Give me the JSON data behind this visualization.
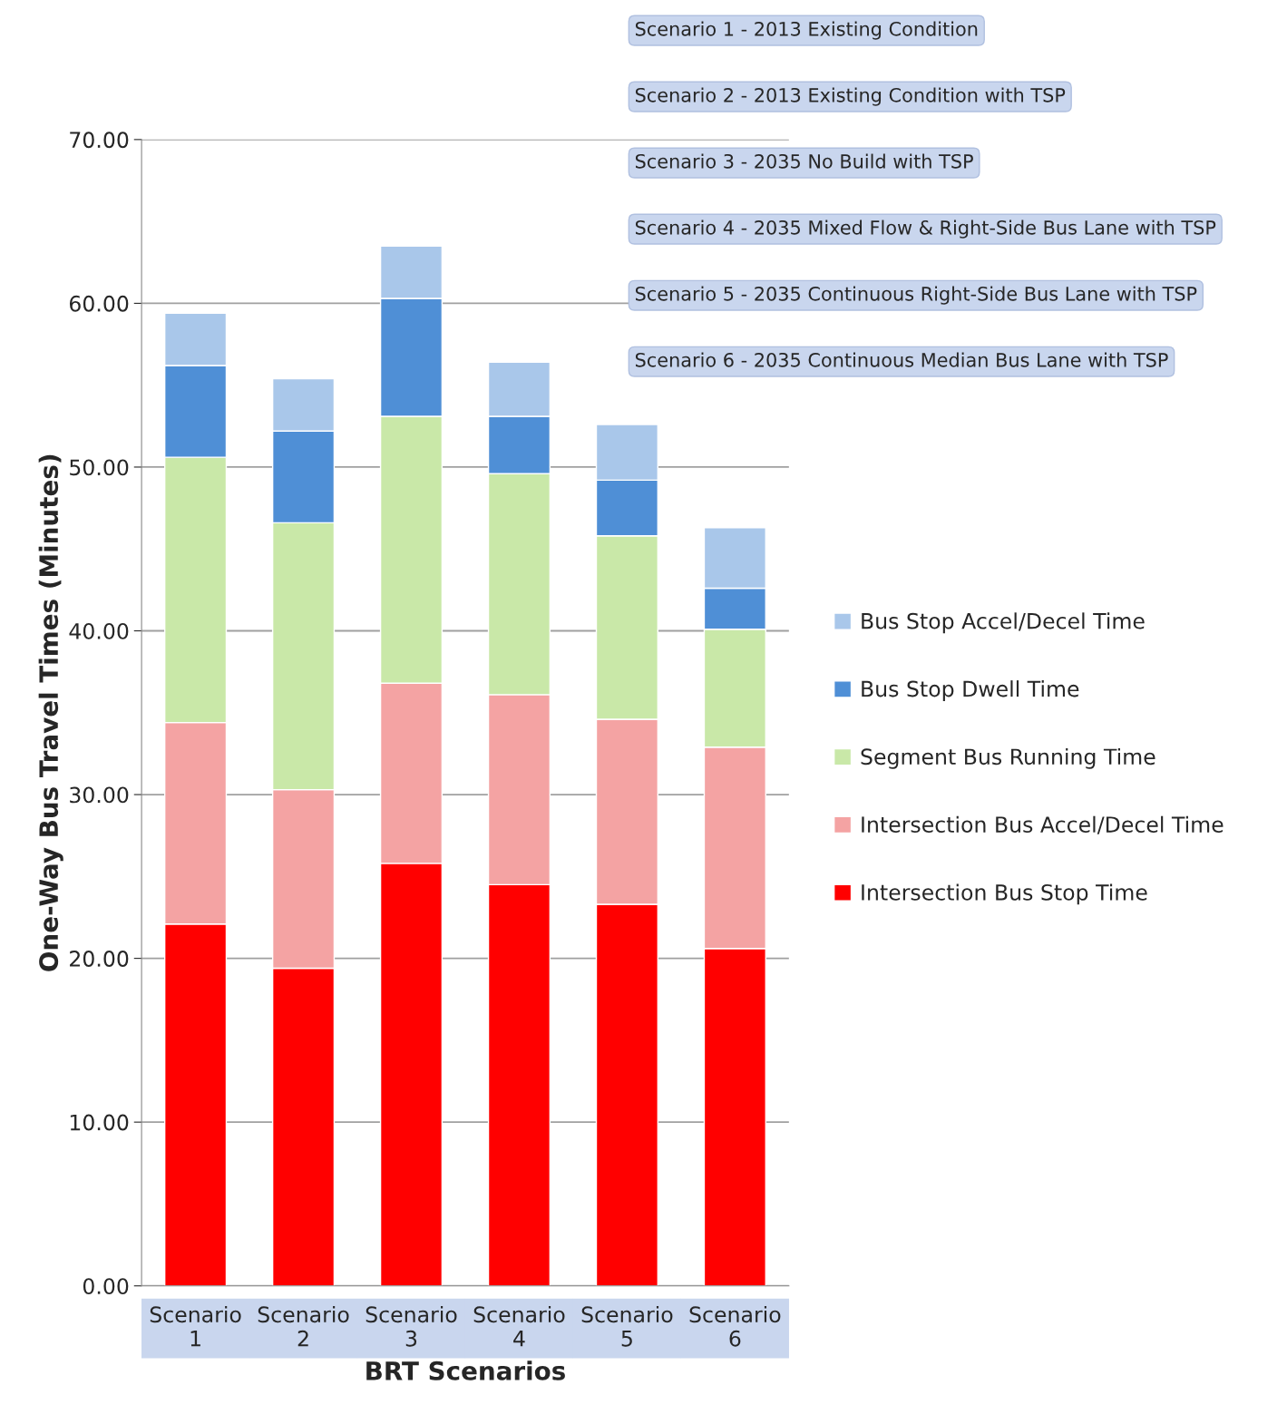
{
  "chart_data": {
    "type": "bar",
    "stacked": true,
    "xlabel": "BRT Scenarios",
    "ylabel": "One-Way Bus Travel Times (Minutes)",
    "categories": [
      "Scenario 1",
      "Scenario 2",
      "Scenario 3",
      "Scenario 4",
      "Scenario 5",
      "Scenario 6"
    ],
    "series": [
      {
        "name": "Intersection Bus Stop Time",
        "color": "#ff0000",
        "values": [
          22.1,
          19.4,
          25.8,
          24.5,
          23.3,
          20.6
        ]
      },
      {
        "name": "Intersection Bus Accel/Decel Time",
        "color": "#f4a3a3",
        "values": [
          12.3,
          10.9,
          11.0,
          11.6,
          11.3,
          12.3
        ]
      },
      {
        "name": "Segment Bus Running Time",
        "color": "#c9e8a8",
        "values": [
          16.2,
          16.3,
          16.3,
          13.5,
          11.2,
          7.2
        ]
      },
      {
        "name": "Bus Stop Dwell Time",
        "color": "#4f8fd6",
        "values": [
          5.6,
          5.6,
          7.2,
          3.5,
          3.4,
          2.5
        ]
      },
      {
        "name": "Bus Stop Accel/Decel Time",
        "color": "#a9c7ea",
        "values": [
          3.2,
          3.2,
          3.2,
          3.3,
          3.4,
          3.7
        ]
      }
    ],
    "ylim": [
      0,
      70
    ],
    "yticks": [
      {
        "value": 0,
        "label": "0.00"
      },
      {
        "value": 10,
        "label": "10.00"
      },
      {
        "value": 20,
        "label": "20.00"
      },
      {
        "value": 30,
        "label": "30.00"
      },
      {
        "value": 40,
        "label": "40.00"
      },
      {
        "value": 50,
        "label": "50.00"
      },
      {
        "value": 60,
        "label": "60.00"
      },
      {
        "value": 70,
        "label": "70.00"
      }
    ],
    "grid": "y",
    "legend": "right",
    "annotations": [
      "Scenario 1 - 2013 Existing Condition",
      "Scenario 2 - 2013 Existing Condition with TSP",
      "Scenario 3 - 2035 No Build with TSP",
      "Scenario 4 - 2035 Mixed Flow & Right-Side Bus Lane with TSP",
      "Scenario 5 - 2035 Continuous Right-Side Bus Lane with TSP",
      "Scenario 6 - 2035 Continuous Median Bus Lane with TSP"
    ]
  }
}
